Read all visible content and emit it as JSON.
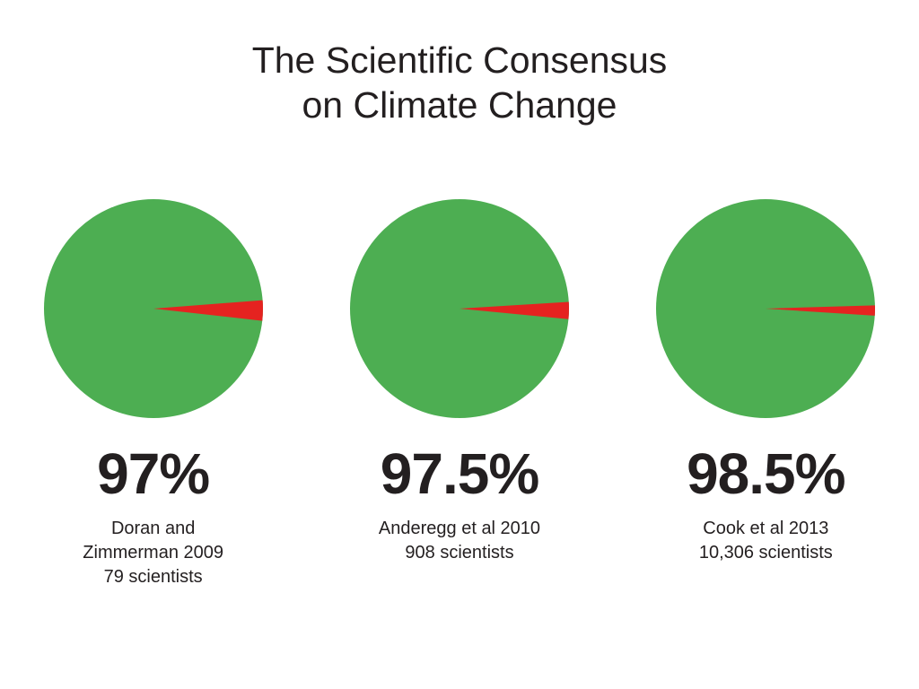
{
  "title": {
    "line1": "The Scientific Consensus",
    "line2": "on Climate Change"
  },
  "colors": {
    "consensus_green": "#4dae52",
    "dissent_red": "#e52320",
    "text_dark": "#231f20",
    "background": "#ffffff"
  },
  "chart_data": [
    {
      "type": "pie",
      "percent_label": "97%",
      "study": "Doran and Zimmerman 2009",
      "sample": "79 scientists",
      "caption_lines": [
        "Doran and",
        "Zimmerman 2009",
        "79 scientists"
      ],
      "slices": [
        {
          "label": "consensus",
          "value": 97,
          "color": "#4dae52"
        },
        {
          "label": "dissent",
          "value": 3,
          "color": "#e52320"
        }
      ]
    },
    {
      "type": "pie",
      "percent_label": "97.5%",
      "study": "Anderegg et al 2010",
      "sample": "908 scientists",
      "caption_lines": [
        "Anderegg et al 2010",
        "908 scientists"
      ],
      "slices": [
        {
          "label": "consensus",
          "value": 97.5,
          "color": "#4dae52"
        },
        {
          "label": "dissent",
          "value": 2.5,
          "color": "#e52320"
        }
      ]
    },
    {
      "type": "pie",
      "percent_label": "98.5%",
      "study": "Cook et al 2013",
      "sample": "10,306 scientists",
      "caption_lines": [
        "Cook et al 2013",
        "10,306 scientists"
      ],
      "slices": [
        {
          "label": "consensus",
          "value": 98.5,
          "color": "#4dae52"
        },
        {
          "label": "dissent",
          "value": 1.5,
          "color": "#e52320"
        }
      ]
    }
  ]
}
